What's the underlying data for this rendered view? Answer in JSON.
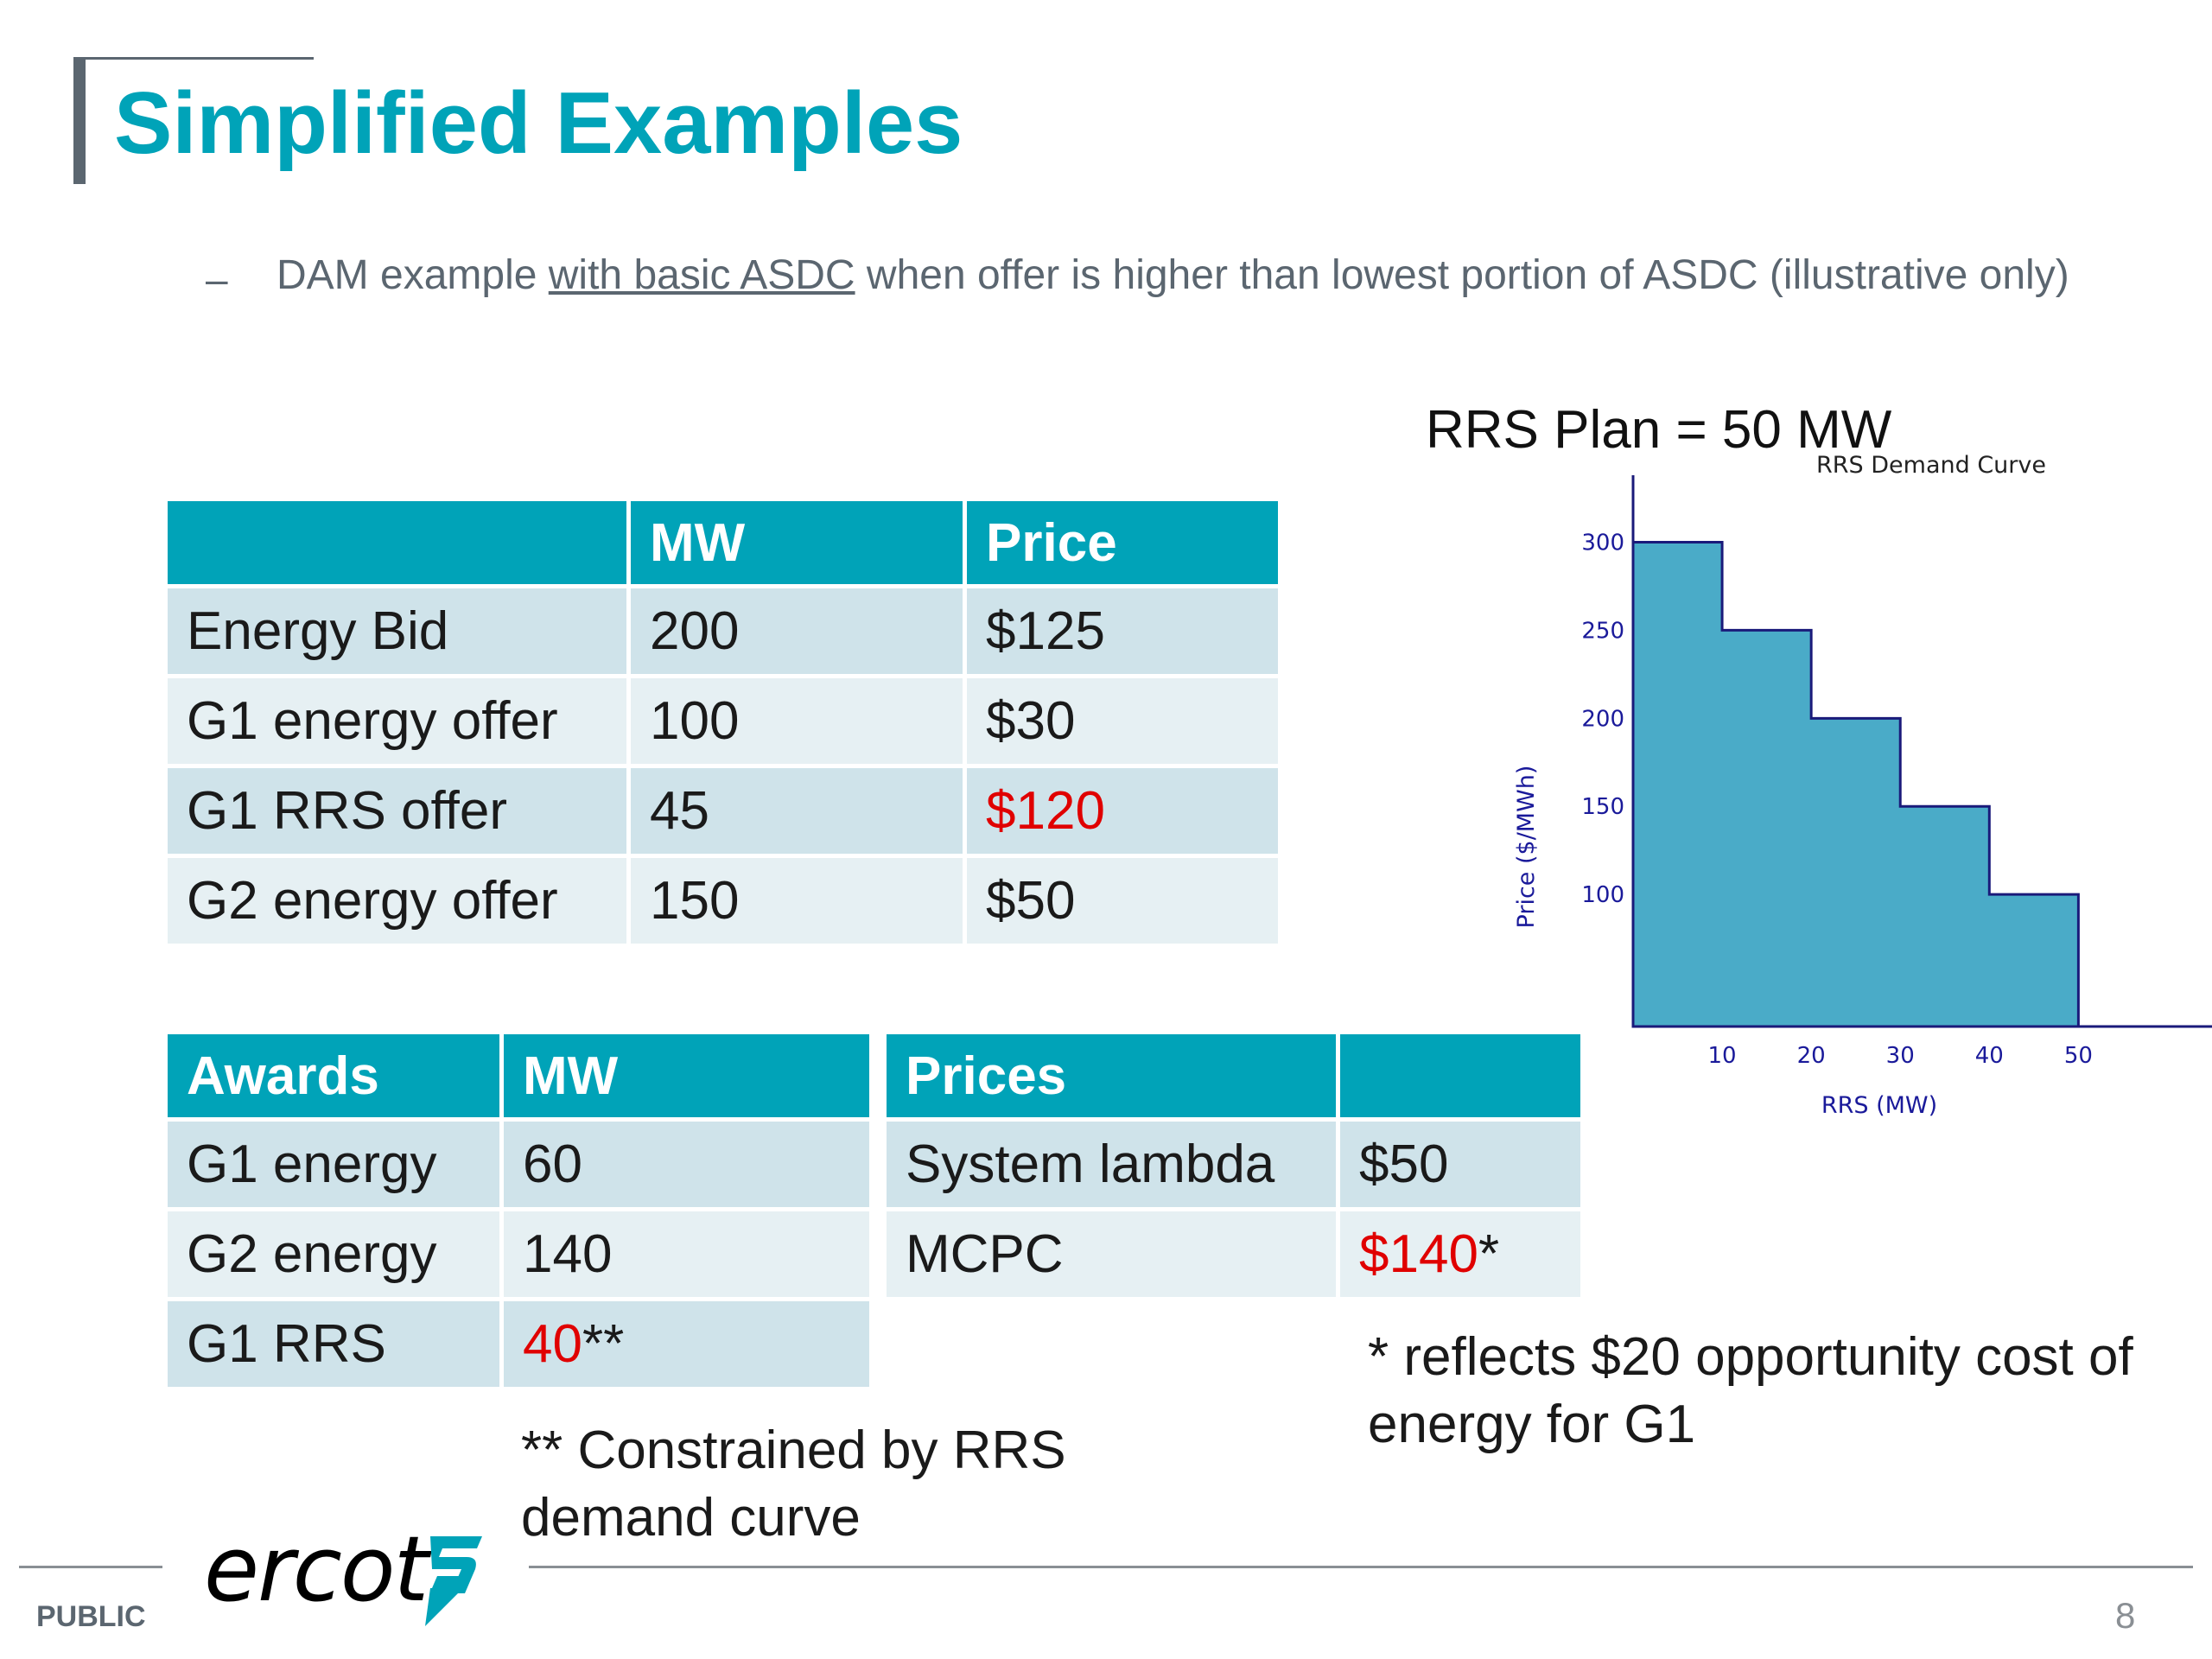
{
  "slide": {
    "title": "Simplified Examples",
    "bullet_dash": "–",
    "bullet_pre": "DAM example ",
    "bullet_link": "with basic ASDC",
    "bullet_post": " when offer is higher than lowest portion of ASDC (illustrative only)"
  },
  "bid_table": {
    "headers": [
      "",
      "MW",
      "Price"
    ],
    "rows": [
      {
        "label": "Energy Bid",
        "mw": "200",
        "price": "$125"
      },
      {
        "label": "G1 energy offer",
        "mw": "100",
        "price": "$30"
      },
      {
        "label": "G1 RRS offer",
        "mw": "45",
        "price": "$120"
      },
      {
        "label": "G2 energy offer",
        "mw": "150",
        "price": "$50"
      }
    ]
  },
  "awards_table": {
    "headers": [
      "Awards",
      "MW"
    ],
    "rows": [
      {
        "label": "G1 energy",
        "mw": "60",
        "mark": ""
      },
      {
        "label": "G2 energy",
        "mw": "140",
        "mark": ""
      },
      {
        "label": "G1 RRS",
        "mw": "40",
        "mark": "**"
      }
    ]
  },
  "prices_table": {
    "headers": [
      "Prices",
      ""
    ],
    "rows": [
      {
        "label": "System lambda",
        "value": "$50",
        "mark": ""
      },
      {
        "label": "MCPC",
        "value": "$140",
        "mark": "*"
      }
    ]
  },
  "notes": {
    "awards": "** Constrained by RRS demand curve",
    "prices": "* reflects $20 opportunity cost of energy for G1"
  },
  "rrs_plan": "RRS Plan = 50 MW",
  "chart_data": {
    "type": "area",
    "title": "RRS Demand Curve",
    "xlabel": "RRS (MW)",
    "ylabel": "Price ($/MWh)",
    "x_ticks": [
      10,
      20,
      30,
      40,
      50
    ],
    "y_ticks": [
      100,
      150,
      200,
      250,
      300
    ],
    "steps": [
      {
        "x_start": 0,
        "x_end": 10,
        "y": 300
      },
      {
        "x_start": 10,
        "x_end": 20,
        "y": 250
      },
      {
        "x_start": 20,
        "x_end": 30,
        "y": 200
      },
      {
        "x_start": 30,
        "x_end": 40,
        "y": 150
      },
      {
        "x_start": 40,
        "x_end": 50,
        "y": 100
      }
    ],
    "xlim": [
      0,
      65
    ],
    "ylim": [
      25,
      340
    ],
    "fill_color": "#4aabc8",
    "line_color": "#1a1a7a",
    "tick_color": "#1a1a9a"
  },
  "footer": {
    "public_label": "PUBLIC",
    "page_number": "8",
    "logo_text": "ercot"
  },
  "colors": {
    "accent": "#00a3b8",
    "header_bg": "#00a3b8",
    "row_dark": "#cfe3ea",
    "row_light": "#e6f0f3",
    "highlight_red": "#e00000"
  }
}
